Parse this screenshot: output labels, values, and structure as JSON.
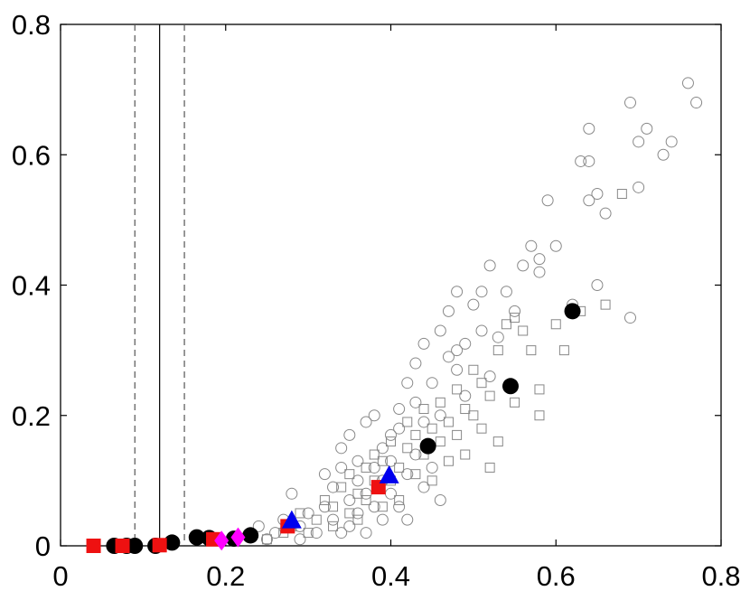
{
  "chart_data": {
    "type": "scatter",
    "title": "",
    "xlabel": "",
    "ylabel": "",
    "xlim": [
      0,
      0.8
    ],
    "ylim": [
      0,
      0.8
    ],
    "x_ticks": [
      "0",
      "0.2",
      "0.4",
      "0.6",
      "0.8"
    ],
    "y_ticks": [
      "0",
      "0.2",
      "0.4",
      "0.6",
      "0.8"
    ],
    "grid": false,
    "legend": "none",
    "reference_lines": [
      {
        "x": 0.09,
        "style": "dashed",
        "color": "#555555"
      },
      {
        "x": 0.12,
        "style": "solid",
        "color": "#000000"
      },
      {
        "x": 0.15,
        "style": "dashed",
        "color": "#555555"
      }
    ],
    "series": [
      {
        "marker": "circle-open",
        "color": "#888888",
        "points": [
          [
            0.26,
            0.02
          ],
          [
            0.27,
            0.04
          ],
          [
            0.28,
            0.08
          ],
          [
            0.29,
            0.03
          ],
          [
            0.3,
            0.05
          ],
          [
            0.31,
            0.02
          ],
          [
            0.32,
            0.06
          ],
          [
            0.32,
            0.11
          ],
          [
            0.33,
            0.04
          ],
          [
            0.33,
            0.09
          ],
          [
            0.34,
            0.12
          ],
          [
            0.34,
            0.02
          ],
          [
            0.34,
            0.15
          ],
          [
            0.35,
            0.07
          ],
          [
            0.35,
            0.17
          ],
          [
            0.35,
            0.03
          ],
          [
            0.36,
            0.1
          ],
          [
            0.36,
            0.05
          ],
          [
            0.36,
            0.13
          ],
          [
            0.37,
            0.19
          ],
          [
            0.37,
            0.08
          ],
          [
            0.37,
            0.02
          ],
          [
            0.38,
            0.12
          ],
          [
            0.38,
            0.2
          ],
          [
            0.38,
            0.06
          ],
          [
            0.39,
            0.15
          ],
          [
            0.39,
            0.04
          ],
          [
            0.39,
            0.1
          ],
          [
            0.4,
            0.17
          ],
          [
            0.4,
            0.08
          ],
          [
            0.4,
            0.13
          ],
          [
            0.41,
            0.21
          ],
          [
            0.41,
            0.06
          ],
          [
            0.41,
            0.18
          ],
          [
            0.42,
            0.11
          ],
          [
            0.42,
            0.25
          ],
          [
            0.42,
            0.04
          ],
          [
            0.43,
            0.22
          ],
          [
            0.43,
            0.14
          ],
          [
            0.43,
            0.28
          ],
          [
            0.44,
            0.09
          ],
          [
            0.44,
            0.31
          ],
          [
            0.44,
            0.19
          ],
          [
            0.45,
            0.25
          ],
          [
            0.45,
            0.12
          ],
          [
            0.46,
            0.33
          ],
          [
            0.46,
            0.2
          ],
          [
            0.46,
            0.07
          ],
          [
            0.47,
            0.29
          ],
          [
            0.47,
            0.36
          ],
          [
            0.48,
            0.3
          ],
          [
            0.48,
            0.39
          ],
          [
            0.48,
            0.27
          ],
          [
            0.49,
            0.31
          ],
          [
            0.49,
            0.23
          ],
          [
            0.5,
            0.37
          ],
          [
            0.51,
            0.39
          ],
          [
            0.51,
            0.33
          ],
          [
            0.52,
            0.43
          ],
          [
            0.52,
            0.26
          ],
          [
            0.53,
            0.32
          ],
          [
            0.54,
            0.39
          ],
          [
            0.55,
            0.36
          ],
          [
            0.56,
            0.43
          ],
          [
            0.57,
            0.46
          ],
          [
            0.58,
            0.44
          ],
          [
            0.58,
            0.42
          ],
          [
            0.59,
            0.53
          ],
          [
            0.6,
            0.46
          ],
          [
            0.62,
            0.37
          ],
          [
            0.63,
            0.59
          ],
          [
            0.64,
            0.64
          ],
          [
            0.64,
            0.53
          ],
          [
            0.64,
            0.59
          ],
          [
            0.65,
            0.54
          ],
          [
            0.65,
            0.4
          ],
          [
            0.66,
            0.51
          ],
          [
            0.69,
            0.68
          ],
          [
            0.69,
            0.35
          ],
          [
            0.7,
            0.55
          ],
          [
            0.7,
            0.62
          ],
          [
            0.71,
            0.64
          ],
          [
            0.73,
            0.6
          ],
          [
            0.74,
            0.62
          ],
          [
            0.76,
            0.71
          ],
          [
            0.77,
            0.68
          ],
          [
            0.23,
            0.02
          ],
          [
            0.24,
            0.03
          ],
          [
            0.25,
            0.01
          ],
          [
            0.29,
            0.01
          ]
        ]
      },
      {
        "marker": "square-open",
        "color": "#888888",
        "points": [
          [
            0.25,
            0.01
          ],
          [
            0.27,
            0.02
          ],
          [
            0.28,
            0.03
          ],
          [
            0.29,
            0.05
          ],
          [
            0.3,
            0.02
          ],
          [
            0.31,
            0.04
          ],
          [
            0.32,
            0.07
          ],
          [
            0.33,
            0.03
          ],
          [
            0.33,
            0.06
          ],
          [
            0.34,
            0.09
          ],
          [
            0.35,
            0.05
          ],
          [
            0.35,
            0.11
          ],
          [
            0.36,
            0.08
          ],
          [
            0.36,
            0.04
          ],
          [
            0.37,
            0.12
          ],
          [
            0.37,
            0.07
          ],
          [
            0.38,
            0.1
          ],
          [
            0.38,
            0.14
          ],
          [
            0.39,
            0.06
          ],
          [
            0.39,
            0.13
          ],
          [
            0.4,
            0.1
          ],
          [
            0.4,
            0.16
          ],
          [
            0.41,
            0.12
          ],
          [
            0.41,
            0.07
          ],
          [
            0.42,
            0.15
          ],
          [
            0.42,
            0.19
          ],
          [
            0.43,
            0.11
          ],
          [
            0.43,
            0.17
          ],
          [
            0.44,
            0.14
          ],
          [
            0.44,
            0.21
          ],
          [
            0.45,
            0.1
          ],
          [
            0.45,
            0.18
          ],
          [
            0.46,
            0.16
          ],
          [
            0.46,
            0.22
          ],
          [
            0.47,
            0.13
          ],
          [
            0.47,
            0.19
          ],
          [
            0.48,
            0.24
          ],
          [
            0.48,
            0.17
          ],
          [
            0.49,
            0.21
          ],
          [
            0.49,
            0.14
          ],
          [
            0.5,
            0.2
          ],
          [
            0.5,
            0.27
          ],
          [
            0.51,
            0.18
          ],
          [
            0.51,
            0.25
          ],
          [
            0.52,
            0.12
          ],
          [
            0.52,
            0.23
          ],
          [
            0.53,
            0.3
          ],
          [
            0.53,
            0.16
          ],
          [
            0.54,
            0.34
          ],
          [
            0.55,
            0.22
          ],
          [
            0.55,
            0.35
          ],
          [
            0.56,
            0.33
          ],
          [
            0.57,
            0.3
          ],
          [
            0.58,
            0.24
          ],
          [
            0.58,
            0.2
          ],
          [
            0.6,
            0.34
          ],
          [
            0.61,
            0.3
          ],
          [
            0.63,
            0.36
          ],
          [
            0.66,
            0.37
          ],
          [
            0.68,
            0.54
          ]
        ]
      },
      {
        "marker": "circle-filled",
        "color": "#000000",
        "points": [
          [
            0.065,
            0.0
          ],
          [
            0.08,
            0.0
          ],
          [
            0.09,
            0.0
          ],
          [
            0.115,
            0.0
          ],
          [
            0.135,
            0.005
          ],
          [
            0.165,
            0.013
          ],
          [
            0.18,
            0.012
          ],
          [
            0.21,
            0.011
          ],
          [
            0.23,
            0.016
          ],
          [
            0.445,
            0.153
          ],
          [
            0.545,
            0.245
          ],
          [
            0.62,
            0.36
          ]
        ]
      },
      {
        "marker": "square-filled",
        "color": "#ee1111",
        "points": [
          [
            0.04,
            0.0
          ],
          [
            0.075,
            0.0
          ],
          [
            0.12,
            0.001
          ],
          [
            0.185,
            0.01
          ],
          [
            0.275,
            0.03
          ],
          [
            0.385,
            0.09
          ]
        ]
      },
      {
        "marker": "diamond-filled",
        "color": "#ff00ff",
        "points": [
          [
            0.195,
            0.008
          ],
          [
            0.215,
            0.013
          ]
        ]
      },
      {
        "marker": "triangle-filled",
        "color": "#0000ee",
        "points": [
          [
            0.28,
            0.038
          ],
          [
            0.398,
            0.107
          ]
        ]
      }
    ]
  }
}
